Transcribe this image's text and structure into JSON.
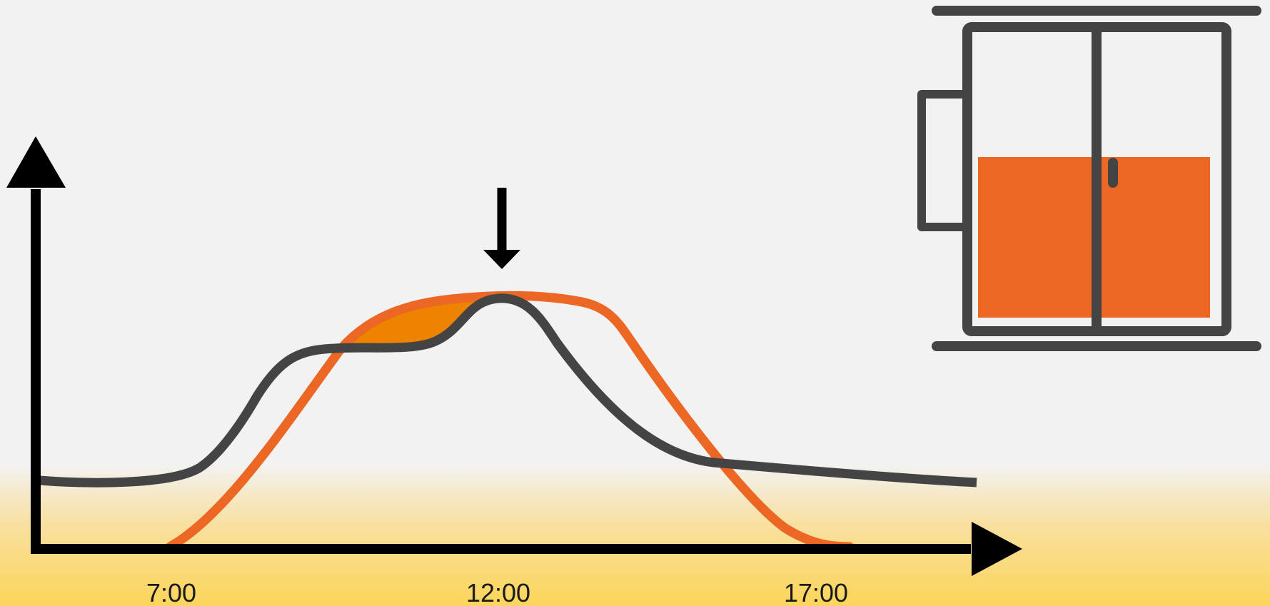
{
  "x_ticks": [
    {
      "label": "7:00"
    },
    {
      "label": "12:00"
    },
    {
      "label": "17:00"
    }
  ],
  "icons": {
    "peak_marker": "down-arrow-icon",
    "window": "sliding-window-icon"
  },
  "colors": {
    "background": "#f2f2f2",
    "ground_gradient_top": "#f9e0a0",
    "ground_gradient_bottom": "#fbd55a",
    "axis": "#000000",
    "orange_curve": "#ec6624",
    "overlap_fill": "#ee8300",
    "dark_curve": "#444444",
    "window_frame": "#444444",
    "window_fill": "#ec6624"
  }
}
